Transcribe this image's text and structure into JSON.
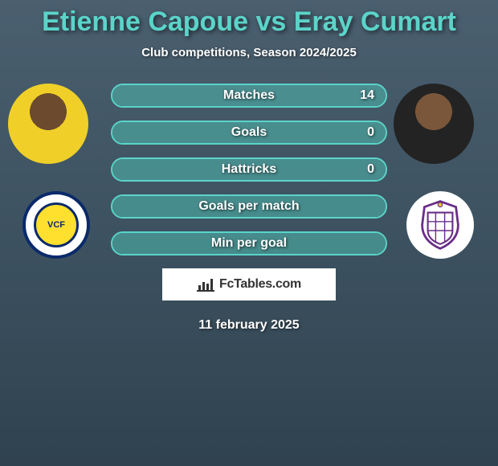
{
  "title_color": "#5bd4c9",
  "title": "Etienne Capoue vs Eray Cumart",
  "subtitle": "Club competitions, Season 2024/2025",
  "player_left": {
    "name": "Etienne Capoue"
  },
  "player_right": {
    "name": "Eray Cumart"
  },
  "club_left": {
    "name": "Villarreal",
    "initials": "VCF"
  },
  "club_right": {
    "name": "Real Valladolid"
  },
  "bars": {
    "border_color": "#5bd4c9",
    "fill_color": "#5bd4c9",
    "items": [
      {
        "label": "Matches",
        "value": "14",
        "fill_pct": 100
      },
      {
        "label": "Goals",
        "value": "0",
        "fill_pct": 100
      },
      {
        "label": "Hattricks",
        "value": "0",
        "fill_pct": 100
      },
      {
        "label": "Goals per match",
        "value": "",
        "fill_pct": 100
      },
      {
        "label": "Min per goal",
        "value": "",
        "fill_pct": 100
      }
    ]
  },
  "brand": "FcTables.com",
  "date": "11 february 2025"
}
